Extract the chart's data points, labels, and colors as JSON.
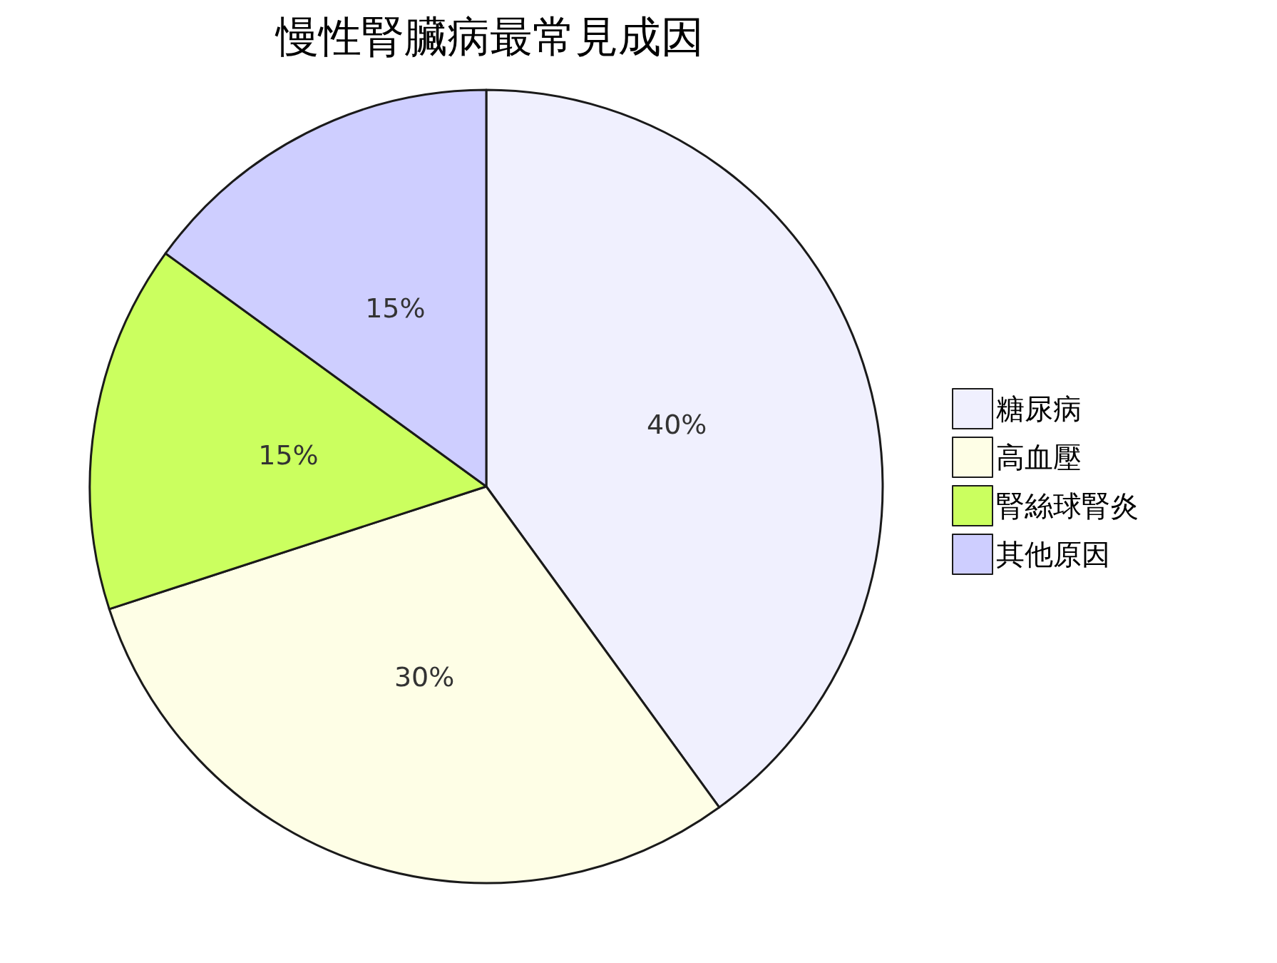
{
  "chart_data": {
    "type": "pie",
    "title": "慢性腎臟病最常見成因",
    "categories": [
      "糖尿病",
      "高血壓",
      "腎絲球腎炎",
      "其他原因"
    ],
    "values": [
      40,
      30,
      15,
      15
    ],
    "value_labels": [
      "40%",
      "30%",
      "15%",
      "15%"
    ],
    "colors": [
      "#f0f0fe",
      "#fefee6",
      "#cbff5f",
      "#ceceff"
    ],
    "legend": "right"
  }
}
